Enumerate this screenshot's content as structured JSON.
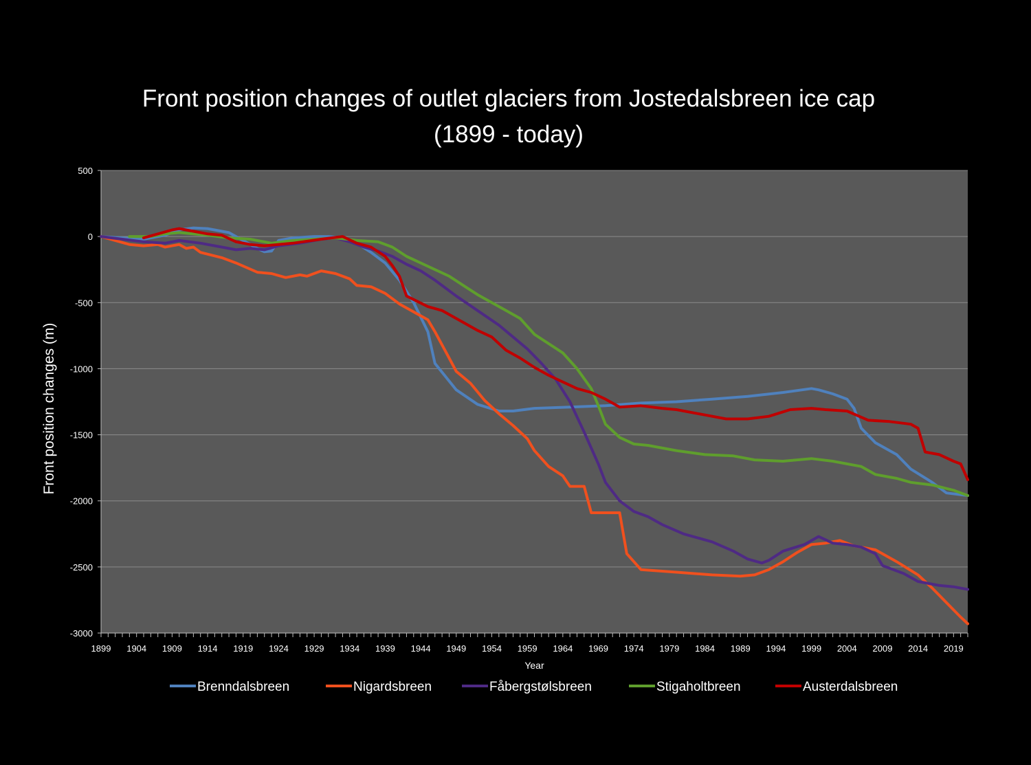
{
  "chart_data": {
    "type": "line",
    "title": "Front position changes of outlet glaciers from Jostedalsbreen ice cap",
    "subtitle": "(1899 - today)",
    "xlabel": "Year",
    "ylabel": "Front position changes (m)",
    "xlim": [
      1899,
      2021
    ],
    "ylim": [
      -3000,
      500
    ],
    "yticks": [
      500,
      0,
      -500,
      -1000,
      -1500,
      -2000,
      -2500,
      -3000
    ],
    "xticks": [
      1899,
      1904,
      1909,
      1914,
      1919,
      1924,
      1929,
      1934,
      1939,
      1944,
      1949,
      1954,
      1959,
      1964,
      1969,
      1974,
      1979,
      1984,
      1989,
      1994,
      1999,
      2004,
      2009,
      2014,
      2019
    ],
    "grid": "horizontal",
    "legend_position": "bottom",
    "plot_background": "#595959",
    "series": [
      {
        "name": "Brenndalsbreen",
        "color": "#4f81bd",
        "points": [
          [
            1899,
            0
          ],
          [
            1902,
            -10
          ],
          [
            1905,
            -20
          ],
          [
            1908,
            10
          ],
          [
            1910,
            50
          ],
          [
            1912,
            65
          ],
          [
            1914,
            60
          ],
          [
            1917,
            30
          ],
          [
            1919,
            -30
          ],
          [
            1921,
            -90
          ],
          [
            1922,
            -115
          ],
          [
            1923,
            -110
          ],
          [
            1924,
            -30
          ],
          [
            1926,
            -10
          ],
          [
            1929,
            0
          ],
          [
            1931,
            0
          ],
          [
            1933,
            -10
          ],
          [
            1935,
            -50
          ],
          [
            1937,
            -120
          ],
          [
            1939,
            -200
          ],
          [
            1941,
            -330
          ],
          [
            1943,
            -500
          ],
          [
            1945,
            -720
          ],
          [
            1946,
            -960
          ],
          [
            1949,
            -1160
          ],
          [
            1952,
            -1270
          ],
          [
            1955,
            -1320
          ],
          [
            1957,
            -1320
          ],
          [
            1960,
            -1300
          ],
          [
            1965,
            -1290
          ],
          [
            1970,
            -1280
          ],
          [
            1975,
            -1260
          ],
          [
            1980,
            -1250
          ],
          [
            1985,
            -1230
          ],
          [
            1990,
            -1210
          ],
          [
            1995,
            -1180
          ],
          [
            1999,
            -1150
          ],
          [
            2000,
            -1160
          ],
          [
            2002,
            -1190
          ],
          [
            2004,
            -1230
          ],
          [
            2005,
            -1300
          ],
          [
            2006,
            -1450
          ],
          [
            2008,
            -1560
          ],
          [
            2011,
            -1650
          ],
          [
            2013,
            -1760
          ],
          [
            2016,
            -1860
          ],
          [
            2018,
            -1940
          ],
          [
            2021,
            -1960
          ]
        ]
      },
      {
        "name": "Nigardsbreen",
        "color": "#f0501e",
        "points": [
          [
            1899,
            0
          ],
          [
            1901,
            -30
          ],
          [
            1903,
            -60
          ],
          [
            1905,
            -70
          ],
          [
            1907,
            -60
          ],
          [
            1908,
            -80
          ],
          [
            1910,
            -60
          ],
          [
            1911,
            -90
          ],
          [
            1912,
            -80
          ],
          [
            1913,
            -120
          ],
          [
            1916,
            -160
          ],
          [
            1918,
            -200
          ],
          [
            1921,
            -270
          ],
          [
            1923,
            -280
          ],
          [
            1925,
            -310
          ],
          [
            1927,
            -290
          ],
          [
            1928,
            -300
          ],
          [
            1930,
            -260
          ],
          [
            1932,
            -280
          ],
          [
            1934,
            -320
          ],
          [
            1935,
            -370
          ],
          [
            1937,
            -380
          ],
          [
            1939,
            -430
          ],
          [
            1941,
            -510
          ],
          [
            1943,
            -570
          ],
          [
            1945,
            -630
          ],
          [
            1946,
            -720
          ],
          [
            1948,
            -920
          ],
          [
            1949,
            -1020
          ],
          [
            1951,
            -1110
          ],
          [
            1953,
            -1240
          ],
          [
            1955,
            -1340
          ],
          [
            1957,
            -1430
          ],
          [
            1959,
            -1530
          ],
          [
            1960,
            -1620
          ],
          [
            1962,
            -1740
          ],
          [
            1964,
            -1810
          ],
          [
            1965,
            -1890
          ],
          [
            1967,
            -1890
          ],
          [
            1968,
            -2090
          ],
          [
            1972,
            -2090
          ],
          [
            1973,
            -2400
          ],
          [
            1975,
            -2520
          ],
          [
            1980,
            -2540
          ],
          [
            1985,
            -2560
          ],
          [
            1989,
            -2570
          ],
          [
            1991,
            -2560
          ],
          [
            1993,
            -2520
          ],
          [
            1995,
            -2460
          ],
          [
            1997,
            -2390
          ],
          [
            1999,
            -2330
          ],
          [
            2001,
            -2320
          ],
          [
            2003,
            -2300
          ],
          [
            2005,
            -2340
          ],
          [
            2008,
            -2370
          ],
          [
            2011,
            -2460
          ],
          [
            2014,
            -2560
          ],
          [
            2016,
            -2660
          ],
          [
            2018,
            -2770
          ],
          [
            2020,
            -2880
          ],
          [
            2021,
            -2930
          ]
        ]
      },
      {
        "name": "Fåbergstølsbreen",
        "color": "#4e2a84",
        "points": [
          [
            1899,
            0
          ],
          [
            1902,
            -20
          ],
          [
            1905,
            -40
          ],
          [
            1908,
            -50
          ],
          [
            1910,
            -30
          ],
          [
            1913,
            -50
          ],
          [
            1916,
            -80
          ],
          [
            1918,
            -100
          ],
          [
            1920,
            -90
          ],
          [
            1922,
            -100
          ],
          [
            1924,
            -70
          ],
          [
            1927,
            -50
          ],
          [
            1930,
            -20
          ],
          [
            1932,
            -10
          ],
          [
            1934,
            -40
          ],
          [
            1936,
            -80
          ],
          [
            1938,
            -110
          ],
          [
            1940,
            -150
          ],
          [
            1942,
            -210
          ],
          [
            1944,
            -260
          ],
          [
            1946,
            -330
          ],
          [
            1949,
            -450
          ],
          [
            1952,
            -560
          ],
          [
            1955,
            -670
          ],
          [
            1957,
            -760
          ],
          [
            1959,
            -850
          ],
          [
            1961,
            -960
          ],
          [
            1963,
            -1080
          ],
          [
            1965,
            -1250
          ],
          [
            1967,
            -1480
          ],
          [
            1969,
            -1720
          ],
          [
            1970,
            -1860
          ],
          [
            1972,
            -2000
          ],
          [
            1974,
            -2080
          ],
          [
            1976,
            -2120
          ],
          [
            1978,
            -2180
          ],
          [
            1981,
            -2250
          ],
          [
            1985,
            -2310
          ],
          [
            1988,
            -2380
          ],
          [
            1990,
            -2440
          ],
          [
            1992,
            -2470
          ],
          [
            1993,
            -2450
          ],
          [
            1995,
            -2380
          ],
          [
            1998,
            -2330
          ],
          [
            2000,
            -2270
          ],
          [
            2002,
            -2320
          ],
          [
            2004,
            -2330
          ],
          [
            2006,
            -2350
          ],
          [
            2008,
            -2400
          ],
          [
            2009,
            -2490
          ],
          [
            2012,
            -2550
          ],
          [
            2014,
            -2610
          ],
          [
            2017,
            -2640
          ],
          [
            2019,
            -2650
          ],
          [
            2021,
            -2670
          ]
        ]
      },
      {
        "name": "Stigaholtbreen",
        "color": "#5f9e2d",
        "points": [
          [
            1903,
            0
          ],
          [
            1906,
            0
          ],
          [
            1908,
            20
          ],
          [
            1910,
            30
          ],
          [
            1914,
            10
          ],
          [
            1917,
            -10
          ],
          [
            1920,
            -20
          ],
          [
            1923,
            -50
          ],
          [
            1926,
            -30
          ],
          [
            1929,
            -20
          ],
          [
            1932,
            -10
          ],
          [
            1935,
            -30
          ],
          [
            1938,
            -40
          ],
          [
            1940,
            -80
          ],
          [
            1942,
            -150
          ],
          [
            1944,
            -200
          ],
          [
            1946,
            -250
          ],
          [
            1948,
            -300
          ],
          [
            1950,
            -370
          ],
          [
            1952,
            -440
          ],
          [
            1954,
            -500
          ],
          [
            1956,
            -560
          ],
          [
            1958,
            -620
          ],
          [
            1960,
            -740
          ],
          [
            1962,
            -810
          ],
          [
            1964,
            -880
          ],
          [
            1966,
            -1000
          ],
          [
            1968,
            -1150
          ],
          [
            1969,
            -1280
          ],
          [
            1970,
            -1420
          ],
          [
            1972,
            -1520
          ],
          [
            1974,
            -1570
          ],
          [
            1976,
            -1580
          ],
          [
            1980,
            -1620
          ],
          [
            1984,
            -1650
          ],
          [
            1988,
            -1660
          ],
          [
            1991,
            -1690
          ],
          [
            1995,
            -1700
          ],
          [
            1999,
            -1680
          ],
          [
            2002,
            -1700
          ],
          [
            2004,
            -1720
          ],
          [
            2006,
            -1740
          ],
          [
            2008,
            -1800
          ],
          [
            2011,
            -1830
          ],
          [
            2013,
            -1860
          ],
          [
            2016,
            -1880
          ],
          [
            2019,
            -1920
          ],
          [
            2021,
            -1960
          ]
        ]
      },
      {
        "name": "Austerdalsbreen",
        "color": "#c00000",
        "points": [
          [
            1905,
            -10
          ],
          [
            1907,
            20
          ],
          [
            1909,
            50
          ],
          [
            1910,
            60
          ],
          [
            1912,
            40
          ],
          [
            1914,
            20
          ],
          [
            1916,
            10
          ],
          [
            1918,
            -40
          ],
          [
            1920,
            -60
          ],
          [
            1922,
            -70
          ],
          [
            1926,
            -50
          ],
          [
            1930,
            -20
          ],
          [
            1933,
            0
          ],
          [
            1935,
            -50
          ],
          [
            1937,
            -80
          ],
          [
            1939,
            -150
          ],
          [
            1940,
            -220
          ],
          [
            1941,
            -300
          ],
          [
            1942,
            -450
          ],
          [
            1945,
            -530
          ],
          [
            1947,
            -560
          ],
          [
            1950,
            -650
          ],
          [
            1952,
            -710
          ],
          [
            1954,
            -760
          ],
          [
            1956,
            -860
          ],
          [
            1958,
            -920
          ],
          [
            1960,
            -990
          ],
          [
            1962,
            -1050
          ],
          [
            1964,
            -1100
          ],
          [
            1966,
            -1150
          ],
          [
            1968,
            -1180
          ],
          [
            1970,
            -1230
          ],
          [
            1972,
            -1290
          ],
          [
            1975,
            -1280
          ],
          [
            1978,
            -1300
          ],
          [
            1980,
            -1310
          ],
          [
            1984,
            -1350
          ],
          [
            1987,
            -1380
          ],
          [
            1990,
            -1380
          ],
          [
            1993,
            -1360
          ],
          [
            1996,
            -1310
          ],
          [
            1999,
            -1300
          ],
          [
            2001,
            -1310
          ],
          [
            2004,
            -1320
          ],
          [
            2007,
            -1390
          ],
          [
            2010,
            -1400
          ],
          [
            2013,
            -1420
          ],
          [
            2014,
            -1450
          ],
          [
            2015,
            -1630
          ],
          [
            2017,
            -1650
          ],
          [
            2019,
            -1700
          ],
          [
            2020,
            -1720
          ],
          [
            2021,
            -1840
          ]
        ]
      }
    ]
  }
}
